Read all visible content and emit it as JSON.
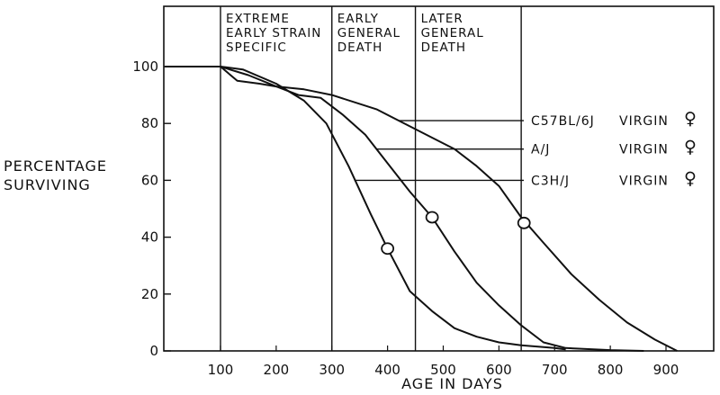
{
  "chart_data": {
    "type": "line",
    "xlabel": "AGE IN DAYS",
    "ylabel": [
      "PERCENTAGE",
      "SURVIVING"
    ],
    "xlim": [
      0,
      960
    ],
    "ylim": [
      0,
      100
    ],
    "x_ticks": [
      100,
      200,
      300,
      400,
      500,
      600,
      700,
      800,
      900
    ],
    "y_ticks": [
      0,
      20,
      40,
      60,
      80,
      100
    ],
    "grid": false,
    "phase_boundaries": [
      100,
      300,
      450,
      640
    ],
    "phases": [
      {
        "start": 100,
        "end": 300,
        "lines": [
          "EXTREME",
          "EARLY STRAIN",
          "SPECIFIC"
        ]
      },
      {
        "start": 300,
        "end": 450,
        "lines": [
          "EARLY",
          "GENERAL",
          "DEATH"
        ]
      },
      {
        "start": 450,
        "end": 640,
        "lines": [
          "LATER",
          "GENERAL",
          "DEATH"
        ]
      }
    ],
    "series": [
      {
        "name": "C3H/J",
        "status": "VIRGIN",
        "sex_symbol": "♀",
        "label_y": 60,
        "leader_from_x": 340,
        "points": [
          [
            0,
            100
          ],
          [
            100,
            100
          ],
          [
            140,
            99
          ],
          [
            200,
            94
          ],
          [
            250,
            88
          ],
          [
            290,
            80
          ],
          [
            330,
            65
          ],
          [
            370,
            48
          ],
          [
            400,
            36
          ],
          [
            440,
            21
          ],
          [
            480,
            14
          ],
          [
            520,
            8
          ],
          [
            560,
            5
          ],
          [
            600,
            3
          ],
          [
            640,
            2
          ],
          [
            700,
            1
          ],
          [
            720,
            0.5
          ]
        ],
        "median_marker": [
          400,
          36
        ]
      },
      {
        "name": "A/J",
        "status": "VIRGIN",
        "sex_symbol": "♀",
        "label_y": 71,
        "leader_from_x": 380,
        "points": [
          [
            100,
            100
          ],
          [
            130,
            95
          ],
          [
            170,
            94
          ],
          [
            200,
            93
          ],
          [
            240,
            90
          ],
          [
            280,
            89
          ],
          [
            320,
            83
          ],
          [
            360,
            76
          ],
          [
            400,
            66
          ],
          [
            440,
            56
          ],
          [
            480,
            47
          ],
          [
            520,
            35
          ],
          [
            560,
            24
          ],
          [
            600,
            16
          ],
          [
            640,
            9
          ],
          [
            680,
            3
          ],
          [
            720,
            1
          ],
          [
            800,
            0.3
          ],
          [
            860,
            0
          ]
        ],
        "median_marker": [
          480,
          47
        ]
      },
      {
        "name": "C57BL/6J",
        "status": "VIRGIN",
        "sex_symbol": "♀",
        "label_y": 81,
        "leader_from_x": 420,
        "points": [
          [
            100,
            100
          ],
          [
            150,
            97
          ],
          [
            200,
            93
          ],
          [
            250,
            92
          ],
          [
            300,
            90
          ],
          [
            380,
            85
          ],
          [
            440,
            79
          ],
          [
            480,
            75
          ],
          [
            520,
            71
          ],
          [
            560,
            65
          ],
          [
            600,
            58
          ],
          [
            640,
            47
          ],
          [
            680,
            38
          ],
          [
            730,
            27
          ],
          [
            780,
            18
          ],
          [
            830,
            10
          ],
          [
            880,
            4
          ],
          [
            920,
            0
          ]
        ],
        "median_marker": [
          645,
          45
        ]
      }
    ]
  }
}
